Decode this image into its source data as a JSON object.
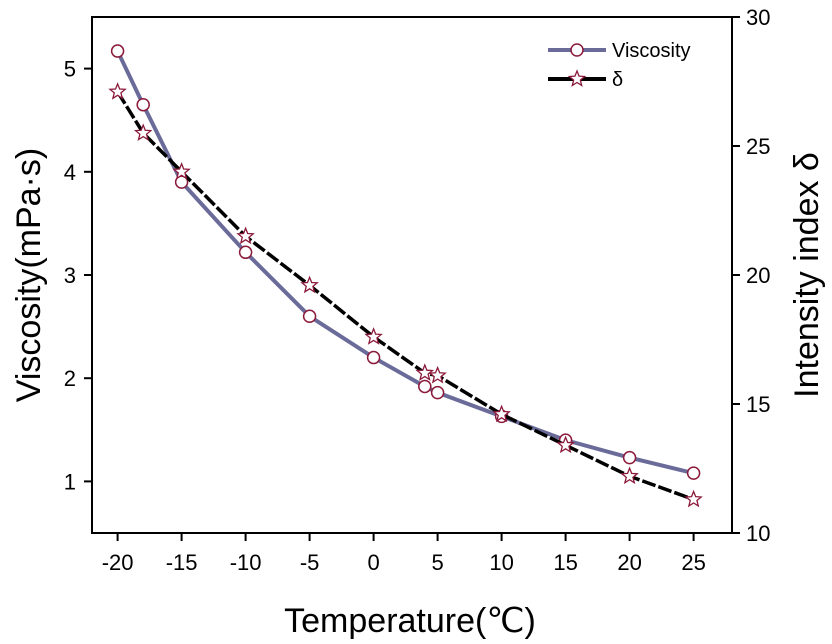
{
  "chart_data": {
    "type": "line",
    "xlabel": "Temperature(℃)",
    "ylabel": "Viscosity(mPa·s)",
    "y2label": "Intensity index δ",
    "xlim": [
      -22,
      28
    ],
    "ylim": [
      0.5,
      5.5
    ],
    "y2lim": [
      10,
      30
    ],
    "xticks": [
      -20,
      -15,
      -10,
      -5,
      0,
      5,
      10,
      15,
      20,
      25
    ],
    "yticks": [
      1,
      2,
      3,
      4,
      5
    ],
    "y2ticks": [
      10,
      15,
      20,
      25,
      30
    ],
    "xtick_labels": [
      "-20",
      "-15",
      "-10",
      "-5",
      "0",
      "5",
      "10",
      "15",
      "20",
      "25"
    ],
    "ytick_labels": [
      "1",
      "2",
      "3",
      "4",
      "5"
    ],
    "y2tick_labels": [
      "10",
      "15",
      "20",
      "25",
      "30"
    ],
    "legend_position": "top-right",
    "series": [
      {
        "name": "Viscosity",
        "axis": "left",
        "marker": "circle",
        "line_color": "#6b6b9a",
        "marker_color": "#8b1a3a",
        "x": [
          -20,
          -18,
          -15,
          -10,
          -5,
          0,
          4,
          5,
          10,
          15,
          20,
          25
        ],
        "y": [
          5.17,
          4.65,
          3.9,
          3.22,
          2.6,
          2.2,
          1.92,
          1.86,
          1.63,
          1.4,
          1.23,
          1.08
        ]
      },
      {
        "name": "δ",
        "axis": "right",
        "marker": "star",
        "line_color": "#000000",
        "marker_color": "#8b1a3a",
        "x": [
          -20,
          -18,
          -15,
          -10,
          -5,
          0,
          4,
          5,
          10,
          15,
          20,
          25
        ],
        "y": [
          27.1,
          25.5,
          24.0,
          21.5,
          19.6,
          17.6,
          16.2,
          16.1,
          14.6,
          13.4,
          12.2,
          11.3
        ]
      }
    ]
  }
}
